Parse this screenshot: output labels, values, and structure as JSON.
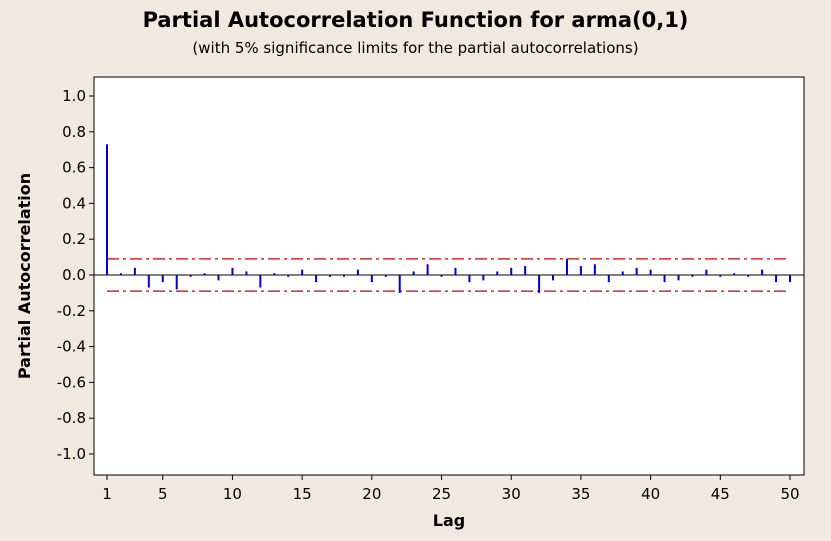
{
  "chart_data": {
    "type": "bar",
    "title": "Partial Autocorrelation Function for arma(0,1)",
    "subtitle": "(with 5% significance limits for the partial autocorrelations)",
    "xlabel": "Lag",
    "ylabel": "Partial Autocorrelation",
    "xlim": [
      1,
      50
    ],
    "ylim": [
      -1.0,
      1.0
    ],
    "x_ticks": [
      1,
      5,
      10,
      15,
      20,
      25,
      30,
      35,
      40,
      45,
      50
    ],
    "y_ticks": [
      "1.0",
      "0.8",
      "0.6",
      "0.4",
      "0.2",
      "0.0",
      "-0.2",
      "-0.4",
      "-0.6",
      "-0.8",
      "-1.0"
    ],
    "lags": [
      1,
      2,
      3,
      4,
      5,
      6,
      7,
      8,
      9,
      10,
      11,
      12,
      13,
      14,
      15,
      16,
      17,
      18,
      19,
      20,
      21,
      22,
      23,
      24,
      25,
      26,
      27,
      28,
      29,
      30,
      31,
      32,
      33,
      34,
      35,
      36,
      37,
      38,
      39,
      40,
      41,
      42,
      43,
      44,
      45,
      46,
      47,
      48,
      49,
      50
    ],
    "values": [
      0.73,
      0.01,
      0.04,
      -0.07,
      -0.04,
      -0.08,
      -0.01,
      0.01,
      -0.03,
      0.04,
      0.02,
      -0.07,
      0.01,
      -0.01,
      0.03,
      -0.04,
      -0.01,
      -0.01,
      0.03,
      -0.04,
      -0.01,
      -0.1,
      0.02,
      0.06,
      -0.01,
      0.04,
      -0.04,
      -0.03,
      0.02,
      0.04,
      0.05,
      -0.1,
      -0.03,
      0.09,
      0.05,
      0.06,
      -0.04,
      0.02,
      0.04,
      0.03,
      -0.04,
      -0.03,
      -0.01,
      0.03,
      -0.01,
      0.01,
      -0.01,
      0.03,
      -0.04,
      -0.04
    ],
    "significance_limit": 0.09,
    "bar_color": "#0000cc",
    "limit_color": "#cc0000",
    "grid": false
  }
}
